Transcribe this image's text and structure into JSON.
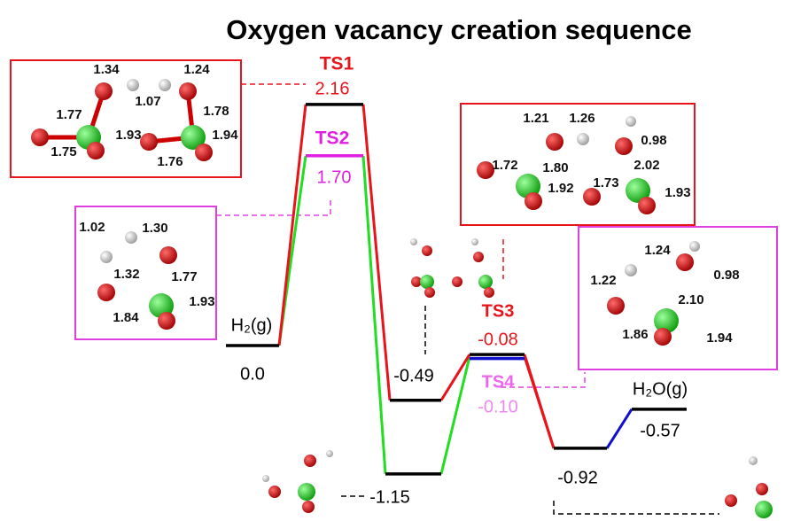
{
  "title": "Oxygen vacancy creation sequence",
  "levels": [
    {
      "name": "H₂(g)",
      "energy": {
        "value": 0,
        "label": "0.0"
      }
    },
    {
      "name": "TS1",
      "energy": 2.16
    },
    {
      "name": "TS2",
      "energy": {
        "value": 1.7,
        "label": "1.70"
      }
    },
    {
      "energy": -0.49
    },
    {
      "energy": -1.15
    },
    {
      "name": "TS3",
      "energy": -0.08
    },
    {
      "name": "TS4",
      "energy": {
        "value": -0.1,
        "label": "-0.10"
      }
    },
    {
      "energy": -0.92
    },
    {
      "name": "H₂O(g)",
      "energy": -0.57
    }
  ],
  "insets": [
    {
      "bonds": [
        "1.34",
        "1.24",
        "1.07",
        "1.77",
        "1.78",
        "1.93",
        "1.94",
        "1.75",
        "1.76"
      ]
    },
    {
      "bonds": [
        "1.02",
        "1.30",
        "1.32",
        "1.77",
        "1.93",
        "1.84"
      ]
    },
    {
      "bonds": [
        "1.21",
        "1.26",
        "0.98",
        "1.72",
        "1.80",
        "1.92",
        "2.02",
        "1.73",
        "1.93"
      ]
    },
    {
      "bonds": [
        "1.24",
        "0.98",
        "1.22",
        "2.10",
        "1.86",
        "1.94"
      ]
    }
  ]
}
